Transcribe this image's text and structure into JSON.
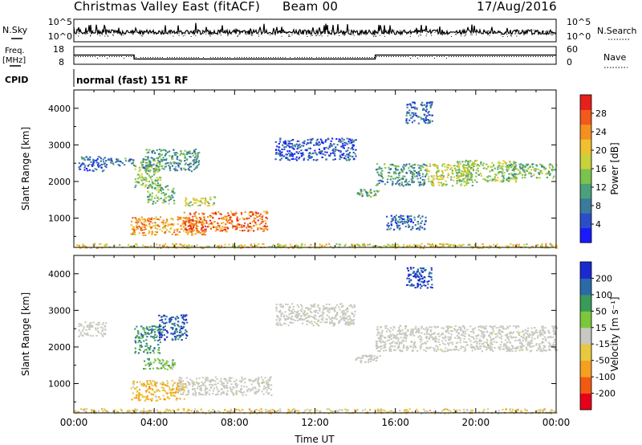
{
  "header": {
    "station": "Christmas Valley East (fitACF)",
    "beam": "Beam 00",
    "date": "17/Aug/2016"
  },
  "params": {
    "nsky_label": "N.Sky",
    "nsearch_label": "N.Search",
    "freq_label_1": "Freq.",
    "freq_label_2": "[MHz]",
    "nave_label": "Nave",
    "cpid_label": "CPID",
    "mode_text": "normal (fast) 151 RF",
    "noise_ticks": [
      "10^5",
      "10^0"
    ],
    "freq_ticks": [
      "18",
      "8"
    ],
    "nave_ticks": [
      "60",
      "0"
    ],
    "freq_mhz_segments": [
      {
        "from": "00:00",
        "to": "03:00",
        "value": 14.5
      },
      {
        "from": "03:00",
        "to": "15:00",
        "value": 11.5
      },
      {
        "from": "15:00",
        "to": "24:00",
        "value": 14.5
      }
    ]
  },
  "chart_data": [
    {
      "type": "heatmap",
      "panel": "power",
      "ylabel": "Slant Range [km]",
      "xlabel": "",
      "y_ticks": [
        "1000",
        "2000",
        "3000",
        "4000"
      ],
      "ylim": [
        200,
        4500
      ],
      "colorbar": {
        "label": "Power [dB]",
        "ticks": [
          "4",
          "8",
          "12",
          "16",
          "20",
          "24",
          "28"
        ],
        "range": [
          0,
          30
        ],
        "colors": [
          "#1a1aff",
          "#2a4ec8",
          "#3a7a9a",
          "#4aa07a",
          "#7cc24e",
          "#c8d23a",
          "#f0c030",
          "#f59020",
          "#f05a1a",
          "#e6201a"
        ]
      },
      "echo_regions": [
        {
          "t0": 0.2,
          "t1": 1.6,
          "r0": 2300,
          "r1": 2700,
          "db": 6
        },
        {
          "t0": 1.5,
          "t1": 3.0,
          "r0": 2450,
          "r1": 2650,
          "db": 8
        },
        {
          "t0": 3.0,
          "t1": 4.3,
          "r0": 1850,
          "r1": 2600,
          "db": 14
        },
        {
          "t0": 3.6,
          "t1": 5.0,
          "r0": 1400,
          "r1": 1900,
          "db": 12
        },
        {
          "t0": 2.8,
          "t1": 6.5,
          "r0": 550,
          "r1": 1050,
          "db": 22
        },
        {
          "t0": 5.4,
          "t1": 9.6,
          "r0": 650,
          "r1": 1200,
          "db": 24
        },
        {
          "t0": 5.5,
          "t1": 7.0,
          "r0": 1350,
          "r1": 1600,
          "db": 16
        },
        {
          "t0": 3.4,
          "t1": 6.2,
          "r0": 2300,
          "r1": 2900,
          "db": 10
        },
        {
          "t0": 10.0,
          "t1": 14.0,
          "r0": 2600,
          "r1": 3200,
          "db": 5
        },
        {
          "t0": 14.0,
          "t1": 15.2,
          "r0": 1600,
          "r1": 1800,
          "db": 12
        },
        {
          "t0": 15.0,
          "t1": 17.5,
          "r0": 1900,
          "r1": 2500,
          "db": 10
        },
        {
          "t0": 16.5,
          "t1": 17.8,
          "r0": 3600,
          "r1": 4200,
          "db": 6
        },
        {
          "t0": 17.5,
          "t1": 19.8,
          "r0": 1900,
          "r1": 2500,
          "db": 16
        },
        {
          "t0": 19.0,
          "t1": 22.0,
          "r0": 2000,
          "r1": 2600,
          "db": 14
        },
        {
          "t0": 21.5,
          "t1": 24.0,
          "r0": 2100,
          "r1": 2500,
          "db": 13
        },
        {
          "t0": 15.5,
          "t1": 17.5,
          "r0": 700,
          "r1": 1100,
          "db": 6
        },
        {
          "t0": 0.0,
          "t1": 24.0,
          "r0": 200,
          "r1": 320,
          "db": 18
        }
      ]
    },
    {
      "type": "heatmap",
      "panel": "velocity",
      "ylabel": "Slant Range [km]",
      "xlabel": "Time UT",
      "x_ticks": [
        "00:00",
        "04:00",
        "08:00",
        "12:00",
        "16:00",
        "20:00",
        "00:00"
      ],
      "y_ticks": [
        "1000",
        "2000",
        "3000",
        "4000"
      ],
      "ylim": [
        200,
        4500
      ],
      "colorbar": {
        "label": "Velocity [m s⁻¹]",
        "ticks": [
          "200",
          "100",
          "50",
          "15",
          "-15",
          "-50",
          "-100",
          "-200"
        ],
        "range": [
          -250,
          250
        ],
        "colors": [
          "#e6001a",
          "#f25a14",
          "#f5a020",
          "#e8c840",
          "#c8c8c0",
          "#7cc83a",
          "#3a9a5a",
          "#2a6aa8",
          "#1a2ad0"
        ]
      },
      "echo_regions": [
        {
          "t0": 0.2,
          "t1": 1.6,
          "r0": 2300,
          "r1": 2700,
          "v": 0,
          "ground": true
        },
        {
          "t0": 3.0,
          "t1": 4.3,
          "r0": 1850,
          "r1": 2600,
          "v": 120
        },
        {
          "t0": 4.2,
          "t1": 5.6,
          "r0": 2200,
          "r1": 2900,
          "v": 180
        },
        {
          "t0": 3.4,
          "t1": 5.0,
          "r0": 1400,
          "r1": 1700,
          "v": 60
        },
        {
          "t0": 2.8,
          "t1": 5.5,
          "r0": 550,
          "r1": 1100,
          "v": -80
        },
        {
          "t0": 5.2,
          "t1": 9.8,
          "r0": 700,
          "r1": 1200,
          "v": 0,
          "ground": true
        },
        {
          "t0": 10.0,
          "t1": 14.0,
          "r0": 2600,
          "r1": 3200,
          "v": 0,
          "ground": true
        },
        {
          "t0": 14.0,
          "t1": 15.2,
          "r0": 1600,
          "r1": 1800,
          "v": 0,
          "ground": true
        },
        {
          "t0": 15.0,
          "t1": 24.0,
          "r0": 1900,
          "r1": 2600,
          "v": 0,
          "ground": true
        },
        {
          "t0": 16.5,
          "t1": 17.8,
          "r0": 3600,
          "r1": 4200,
          "v": 200
        },
        {
          "t0": 0.0,
          "t1": 24.0,
          "r0": 200,
          "r1": 330,
          "v": -40
        }
      ]
    }
  ]
}
